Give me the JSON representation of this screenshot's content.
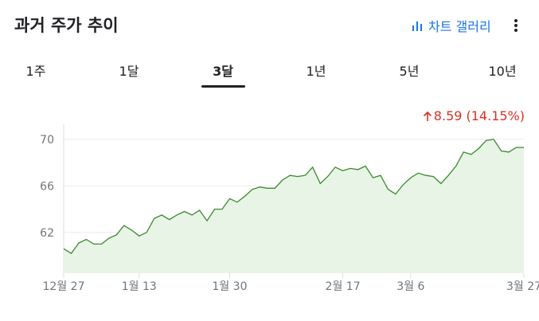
{
  "header": {
    "title": "과거 주가 추이",
    "gallery_label": "차트 갤러리",
    "gallery_icon": "bar-chart-icon",
    "more_icon": "more-vert-icon"
  },
  "tabs": [
    {
      "label": "1주",
      "active": false
    },
    {
      "label": "1달",
      "active": false
    },
    {
      "label": "3달",
      "active": true
    },
    {
      "label": "1년",
      "active": false
    },
    {
      "label": "5년",
      "active": false
    },
    {
      "label": "10년",
      "active": false
    }
  ],
  "change": {
    "arrow_icon": "arrow-up-icon",
    "text": "8.59 (14.15%)",
    "color": "#d93025"
  },
  "colors": {
    "line": "#3a8a2e",
    "fill": "#e8f4e6",
    "accent": "#1a73e8"
  },
  "chart_data": {
    "type": "area",
    "ylim": [
      58.5,
      71.7
    ],
    "yticks": [
      62,
      66,
      70
    ],
    "xticks": [
      "12월 27",
      "1월 13",
      "1월 30",
      "2월 17",
      "3월 6",
      "3월 27"
    ],
    "x": [
      "12-27",
      "12-30",
      "12-31",
      "01-02",
      "01-03",
      "01-06",
      "01-07",
      "01-08",
      "01-09",
      "01-10",
      "01-13",
      "01-14",
      "01-15",
      "01-16",
      "01-17",
      "01-21",
      "01-22",
      "01-23",
      "01-24",
      "01-27",
      "01-28",
      "01-29",
      "01-30",
      "01-31",
      "02-03",
      "02-04",
      "02-05",
      "02-06",
      "02-07",
      "02-10",
      "02-11",
      "02-12",
      "02-13",
      "02-14",
      "02-18",
      "02-19",
      "02-20",
      "02-21",
      "02-24",
      "02-25",
      "02-26",
      "02-27",
      "02-28",
      "03-03",
      "03-04",
      "03-05",
      "03-06",
      "03-07",
      "03-10",
      "03-11",
      "03-12",
      "03-13",
      "03-14",
      "03-17",
      "03-18",
      "03-19",
      "03-20",
      "03-21",
      "03-24",
      "03-25",
      "03-26",
      "03-27"
    ],
    "values": [
      60.6,
      60.2,
      61.1,
      61.4,
      61.0,
      61.0,
      61.5,
      61.8,
      62.6,
      62.2,
      61.7,
      62.0,
      63.2,
      63.5,
      63.1,
      63.5,
      63.8,
      63.5,
      63.9,
      63.0,
      64.0,
      64.0,
      64.9,
      64.6,
      65.1,
      65.7,
      65.9,
      65.8,
      65.8,
      66.5,
      66.9,
      66.8,
      66.9,
      67.6,
      66.2,
      66.8,
      67.6,
      67.3,
      67.5,
      67.4,
      67.7,
      66.7,
      66.9,
      65.7,
      65.3,
      66.1,
      66.7,
      67.1,
      66.9,
      66.8,
      66.2,
      66.9,
      67.7,
      68.9,
      68.7,
      69.2,
      69.9,
      70.0,
      69.0,
      68.9,
      69.3,
      69.3
    ]
  }
}
